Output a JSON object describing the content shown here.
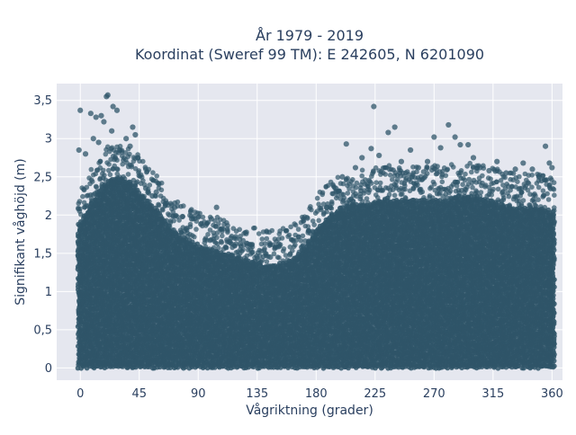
{
  "chart_data": {
    "type": "scatter",
    "title_line1": "År 1979 - 2019",
    "title_line2": "Koordinat (Sweref 99 TM): E 242605, N 6201090",
    "xlabel": "Vågriktning (grader)",
    "ylabel": "Signifikant våghöjd (m)",
    "xlim": [
      -18,
      368
    ],
    "ylim": [
      -0.16,
      3.72
    ],
    "xticks": [
      0,
      45,
      90,
      135,
      180,
      225,
      270,
      315,
      360
    ],
    "xtick_labels": [
      "0",
      "45",
      "90",
      "135",
      "180",
      "225",
      "270",
      "315",
      "360"
    ],
    "yticks": [
      0,
      0.5,
      1,
      1.5,
      2,
      2.5,
      3,
      3.5
    ],
    "ytick_labels": [
      "0",
      "0,5",
      "1",
      "1,5",
      "2",
      "2,5",
      "3",
      "3,5"
    ],
    "grid": true,
    "marker_color": "#2f5569",
    "plot_bg": "#e5e7ef",
    "envelope": {
      "direction_deg": [
        0,
        10,
        20,
        30,
        40,
        50,
        60,
        70,
        80,
        90,
        100,
        110,
        120,
        130,
        140,
        150,
        160,
        170,
        180,
        190,
        200,
        210,
        220,
        230,
        240,
        250,
        260,
        270,
        280,
        290,
        300,
        310,
        320,
        330,
        340,
        350,
        360
      ],
      "dense_max_height_m": [
        1.9,
        2.2,
        2.45,
        2.5,
        2.4,
        2.2,
        2.05,
        1.8,
        1.7,
        1.6,
        1.55,
        1.5,
        1.45,
        1.4,
        1.35,
        1.35,
        1.4,
        1.55,
        1.8,
        2.0,
        2.1,
        2.15,
        2.15,
        2.2,
        2.2,
        2.2,
        2.2,
        2.2,
        2.2,
        2.25,
        2.25,
        2.2,
        2.15,
        2.1,
        2.1,
        2.1,
        2.05
      ]
    },
    "outliers": [
      {
        "x": 0,
        "y": 3.37
      },
      {
        "x": 8,
        "y": 3.33
      },
      {
        "x": 12,
        "y": 3.28
      },
      {
        "x": 16,
        "y": 3.3
      },
      {
        "x": 20,
        "y": 3.55
      },
      {
        "x": 21,
        "y": 3.57
      },
      {
        "x": 25,
        "y": 3.42
      },
      {
        "x": 28,
        "y": 3.37
      },
      {
        "x": 18,
        "y": 3.22
      },
      {
        "x": 10,
        "y": 3.0
      },
      {
        "x": 14,
        "y": 2.95
      },
      {
        "x": 24,
        "y": 3.1
      },
      {
        "x": 30,
        "y": 2.85
      },
      {
        "x": 35,
        "y": 3.0
      },
      {
        "x": 40,
        "y": 3.15
      },
      {
        "x": 42,
        "y": 3.05
      },
      {
        "x": 38,
        "y": 2.9
      },
      {
        "x": 44,
        "y": 2.75
      },
      {
        "x": 4,
        "y": 2.8
      },
      {
        "x": -1,
        "y": 2.85
      },
      {
        "x": 50,
        "y": 2.35
      },
      {
        "x": 55,
        "y": 2.25
      },
      {
        "x": 58,
        "y": 2.3
      },
      {
        "x": 65,
        "y": 2.15
      },
      {
        "x": 72,
        "y": 2.1
      },
      {
        "x": 78,
        "y": 1.98
      },
      {
        "x": 85,
        "y": 1.95
      },
      {
        "x": 92,
        "y": 1.88
      },
      {
        "x": 100,
        "y": 1.95
      },
      {
        "x": 104,
        "y": 2.1
      },
      {
        "x": 108,
        "y": 1.82
      },
      {
        "x": 115,
        "y": 1.7
      },
      {
        "x": 122,
        "y": 1.62
      },
      {
        "x": 130,
        "y": 1.55
      },
      {
        "x": 145,
        "y": 1.45
      },
      {
        "x": 160,
        "y": 1.48
      },
      {
        "x": 170,
        "y": 1.6
      },
      {
        "x": 178,
        "y": 1.72
      },
      {
        "x": 188,
        "y": 2.1
      },
      {
        "x": 195,
        "y": 2.35
      },
      {
        "x": 200,
        "y": 2.5
      },
      {
        "x": 203,
        "y": 2.93
      },
      {
        "x": 210,
        "y": 2.62
      },
      {
        "x": 215,
        "y": 2.75
      },
      {
        "x": 222,
        "y": 2.87
      },
      {
        "x": 224,
        "y": 3.42
      },
      {
        "x": 228,
        "y": 2.78
      },
      {
        "x": 235,
        "y": 3.08
      },
      {
        "x": 240,
        "y": 3.15
      },
      {
        "x": 245,
        "y": 2.7
      },
      {
        "x": 252,
        "y": 2.85
      },
      {
        "x": 258,
        "y": 2.62
      },
      {
        "x": 265,
        "y": 2.7
      },
      {
        "x": 270,
        "y": 3.02
      },
      {
        "x": 275,
        "y": 2.88
      },
      {
        "x": 281,
        "y": 3.18
      },
      {
        "x": 286,
        "y": 3.02
      },
      {
        "x": 290,
        "y": 2.92
      },
      {
        "x": 296,
        "y": 2.92
      },
      {
        "x": 300,
        "y": 2.75
      },
      {
        "x": 305,
        "y": 2.62
      },
      {
        "x": 312,
        "y": 2.58
      },
      {
        "x": 318,
        "y": 2.7
      },
      {
        "x": 325,
        "y": 2.55
      },
      {
        "x": 332,
        "y": 2.6
      },
      {
        "x": 338,
        "y": 2.68
      },
      {
        "x": 345,
        "y": 2.6
      },
      {
        "x": 350,
        "y": 2.5
      },
      {
        "x": 355,
        "y": 2.9
      },
      {
        "x": 358,
        "y": 2.68
      },
      {
        "x": 360,
        "y": 2.62
      },
      {
        "x": 352,
        "y": 2.45
      }
    ]
  }
}
